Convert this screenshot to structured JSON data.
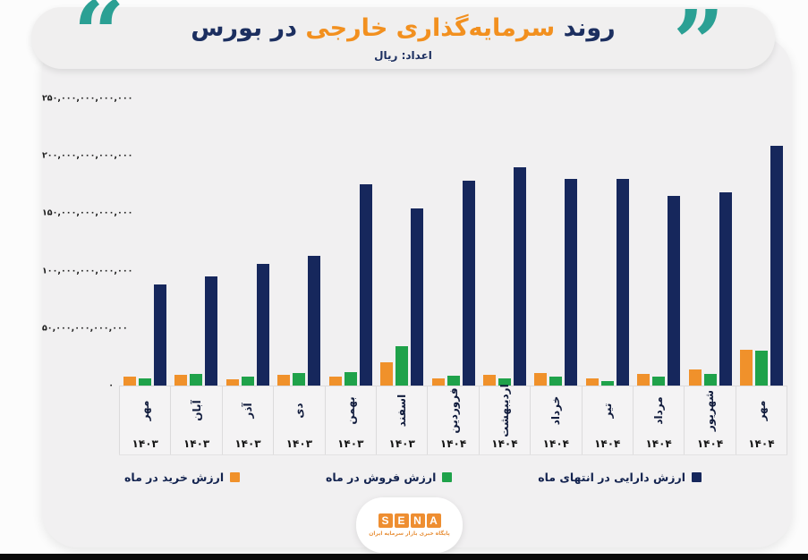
{
  "header": {
    "title_part1": "روند",
    "title_part2": "سرمایه‌گذاری خارجی",
    "title_part3": "در بورس",
    "subtitle": "اعداد: ریال",
    "quote_left_glyph": "“",
    "quote_right_glyph": "”"
  },
  "colors": {
    "navy": "#16275c",
    "orange": "#f0912b",
    "green": "#1fa24a",
    "teal_quotes": "#2ba094",
    "card_bg": "#f1f0f1",
    "header_bg": "#f0efef",
    "bottom_bar": "#0b0b0b"
  },
  "chart_data": {
    "type": "bar",
    "title": "روند سرمایه‌گذاری خارجی در بورس",
    "subtitle": "اعداد: ریال",
    "unit": "ریال",
    "value_unit": "trillion rials (×1,000,000,000,000)",
    "grid": false,
    "legend_position": "bottom",
    "ylim": [
      0,
      250
    ],
    "y_ticks": [
      {
        "label": "۲۵۰,۰۰۰,۰۰۰,۰۰۰,۰۰۰",
        "value": 250
      },
      {
        "label": "۲۰۰,۰۰۰,۰۰۰,۰۰۰,۰۰۰",
        "value": 200
      },
      {
        "label": "۱۵۰,۰۰۰,۰۰۰,۰۰۰,۰۰۰",
        "value": 150
      },
      {
        "label": "۱۰۰,۰۰۰,۰۰۰,۰۰۰,۰۰۰",
        "value": 100
      },
      {
        "label": "۵۰,۰۰۰,۰۰۰,۰۰۰,۰۰۰",
        "value": 50
      },
      {
        "label": "۰",
        "value": 0
      }
    ],
    "categories": [
      {
        "month": "مهر",
        "year": "۱۴۰۳"
      },
      {
        "month": "آبان",
        "year": "۱۴۰۳"
      },
      {
        "month": "آذر",
        "year": "۱۴۰۳"
      },
      {
        "month": "دی",
        "year": "۱۴۰۳"
      },
      {
        "month": "بهمن",
        "year": "۱۴۰۳"
      },
      {
        "month": "اسفند",
        "year": "۱۴۰۳"
      },
      {
        "month": "فروردین",
        "year": "۱۴۰۴"
      },
      {
        "month": "اردیبهشت",
        "year": "۱۴۰۴"
      },
      {
        "month": "خرداد",
        "year": "۱۴۰۴"
      },
      {
        "month": "تیر",
        "year": "۱۴۰۴"
      },
      {
        "month": "مرداد",
        "year": "۱۴۰۴"
      },
      {
        "month": "شهریور",
        "year": "۱۴۰۴"
      },
      {
        "month": "مهر",
        "year": "۱۴۰۴"
      }
    ],
    "series": [
      {
        "name": "ارزش خرید در ماه",
        "color": "#f0912b",
        "values": [
          8,
          9,
          5.5,
          9.5,
          8,
          20,
          6.5,
          9.5,
          11,
          6,
          10.5,
          14,
          31
        ]
      },
      {
        "name": "ارزش فروش در ماه",
        "color": "#1fa24a",
        "values": [
          6,
          10,
          8,
          11,
          12,
          34,
          8.5,
          6.5,
          8,
          4,
          7.5,
          10.5,
          30
        ]
      },
      {
        "name": "ارزش دارایی در انتهای ماه",
        "color": "#16275c",
        "values": [
          88,
          95,
          106,
          113,
          175,
          154,
          178,
          190,
          180,
          180,
          165,
          168,
          209
        ]
      }
    ]
  },
  "footer": {
    "logo_letters": [
      "S",
      "E",
      "N",
      "A"
    ],
    "logo_tagline": "پایگاه خبری بازار سرمایه ایران"
  }
}
